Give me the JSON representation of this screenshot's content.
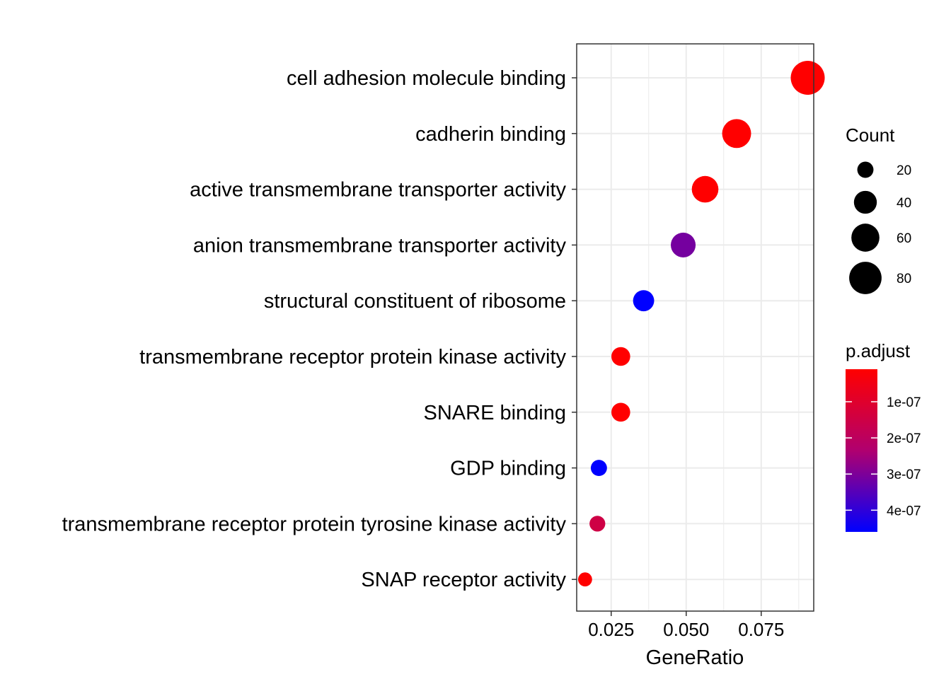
{
  "chart_data": {
    "type": "scatter",
    "title": "",
    "xlabel": "GeneRatio",
    "ylabel": "",
    "xlim": [
      0.0135,
      0.0925
    ],
    "x_ticks": [
      0.025,
      0.05,
      0.075
    ],
    "x_tick_labels": [
      "0.025",
      "0.050",
      "0.075"
    ],
    "grid": true,
    "categories": [
      "cell adhesion molecule binding",
      "cadherin binding",
      "active transmembrane transporter activity",
      "anion transmembrane transporter activity",
      "structural constituent of ribosome",
      "transmembrane receptor protein kinase activity",
      "SNARE binding",
      "GDP binding",
      "transmembrane receptor protein tyrosine kinase activity",
      "SNAP receptor activity"
    ],
    "gene_ratio": [
      0.0905,
      0.0668,
      0.0563,
      0.049,
      0.0358,
      0.0282,
      0.0282,
      0.0209,
      0.0204,
      0.0163
    ],
    "count": [
      88,
      64,
      54,
      47,
      34,
      27,
      27,
      20,
      19,
      15
    ],
    "p_adjust": [
      1e-08,
      1e-08,
      1e-08,
      3.1e-07,
      4.6e-07,
      1e-08,
      1e-08,
      4.6e-07,
      1.5e-07,
      1e-08
    ],
    "size_legend": {
      "title": "Count",
      "values": [
        20,
        40,
        60,
        80
      ],
      "labels": [
        "20",
        "40",
        "60",
        "80"
      ]
    },
    "color_legend": {
      "title": "p.adjust",
      "range": [
        1e-08,
        4.6e-07
      ],
      "low_color": "#FF0000",
      "high_color": "#0000FF",
      "ticks": [
        1e-07,
        2e-07,
        3e-07,
        4e-07
      ],
      "tick_labels": [
        "1e-07",
        "2e-07",
        "3e-07",
        "4e-07"
      ]
    },
    "legend_position": "right"
  }
}
